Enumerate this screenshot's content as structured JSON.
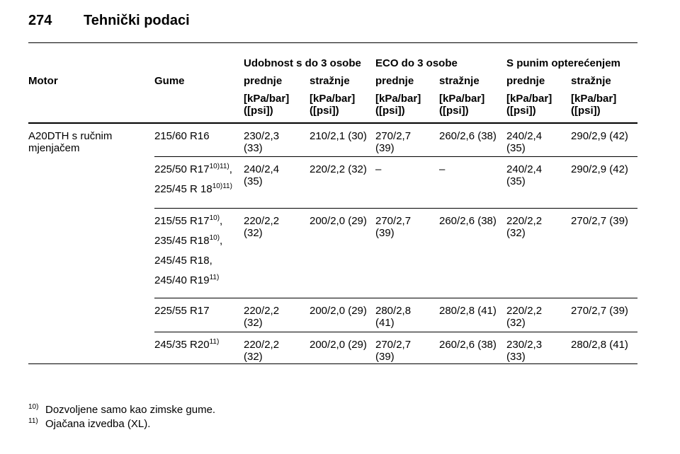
{
  "header": {
    "page": "274",
    "title": "Tehnički podaci"
  },
  "table": {
    "groups": [
      "Udobnost s do 3 osobe",
      "ECO do 3 osobe",
      "S punim opterećenjem"
    ],
    "columns": [
      "Motor",
      "Gume",
      "prednje",
      "stražnje",
      "prednje",
      "stražnje",
      "prednje",
      "stražnje"
    ],
    "units": [
      {
        "line1": "[kPa/bar]",
        "line2": "([psi])"
      },
      {
        "line1": "[kPa/bar]",
        "line2": "([psi])"
      },
      {
        "line1": "[kPa/bar]",
        "line2": "([psi])"
      },
      {
        "line1": "[kPa/bar]",
        "line2": "([psi])"
      },
      {
        "line1": "[kPa/bar]",
        "line2": "([psi])"
      },
      {
        "line1": "[kPa/bar]",
        "line2": "([psi])"
      }
    ],
    "motor": "A20DTH s ručnim mjenjačem",
    "rows": [
      {
        "tyres": [
          {
            "name": "215/60 R16"
          }
        ],
        "values": [
          "230/2,3 (33)",
          "210/2,1 (30)",
          "270/2,7 (39)",
          "260/2,6 (38)",
          "240/2,4 (35)",
          "290/2,9 (42)"
        ]
      },
      {
        "tyres": [
          {
            "name": "225/50 R17",
            "sup": "10)11)",
            "tail": ","
          },
          {
            "name": "225/45 R 18",
            "sup": "10)11)"
          }
        ],
        "values": [
          "240/2,4 (35)",
          "220/2,2 (32)",
          "–",
          "–",
          "240/2,4 (35)",
          "290/2,9 (42)"
        ]
      },
      {
        "tyres": [
          {
            "name": "215/55 R17",
            "sup": "10)",
            "tail": ","
          },
          {
            "name": "235/45 R18",
            "sup": "10)",
            "tail": ","
          },
          {
            "name": "245/45 R18",
            "tail": ","
          },
          {
            "name": "245/40 R19",
            "sup": "11)"
          }
        ],
        "values": [
          "220/2,2 (32)",
          "200/2,0 (29)",
          "270/2,7 (39)",
          "260/2,6 (38)",
          "220/2,2 (32)",
          "270/2,7 (39)"
        ]
      },
      {
        "tyres": [
          {
            "name": "225/55 R17"
          }
        ],
        "values": [
          "220/2,2 (32)",
          "200/2,0 (29)",
          "280/2,8 (41)",
          "280/2,8 (41)",
          "220/2,2 (32)",
          "270/2,7 (39)"
        ]
      },
      {
        "tyres": [
          {
            "name": "245/35 R20",
            "sup": "11)"
          }
        ],
        "values": [
          "220/2,2 (32)",
          "200/2,0 (29)",
          "270/2,7 (39)",
          "260/2,6 (38)",
          "230/2,3 (33)",
          "280/2,8 (41)"
        ]
      }
    ]
  },
  "footnotes": [
    {
      "mark": "10)",
      "text": "Dozvoljene samo kao zimske gume."
    },
    {
      "mark": "11)",
      "text": "Ojačana izvedba (XL)."
    }
  ]
}
